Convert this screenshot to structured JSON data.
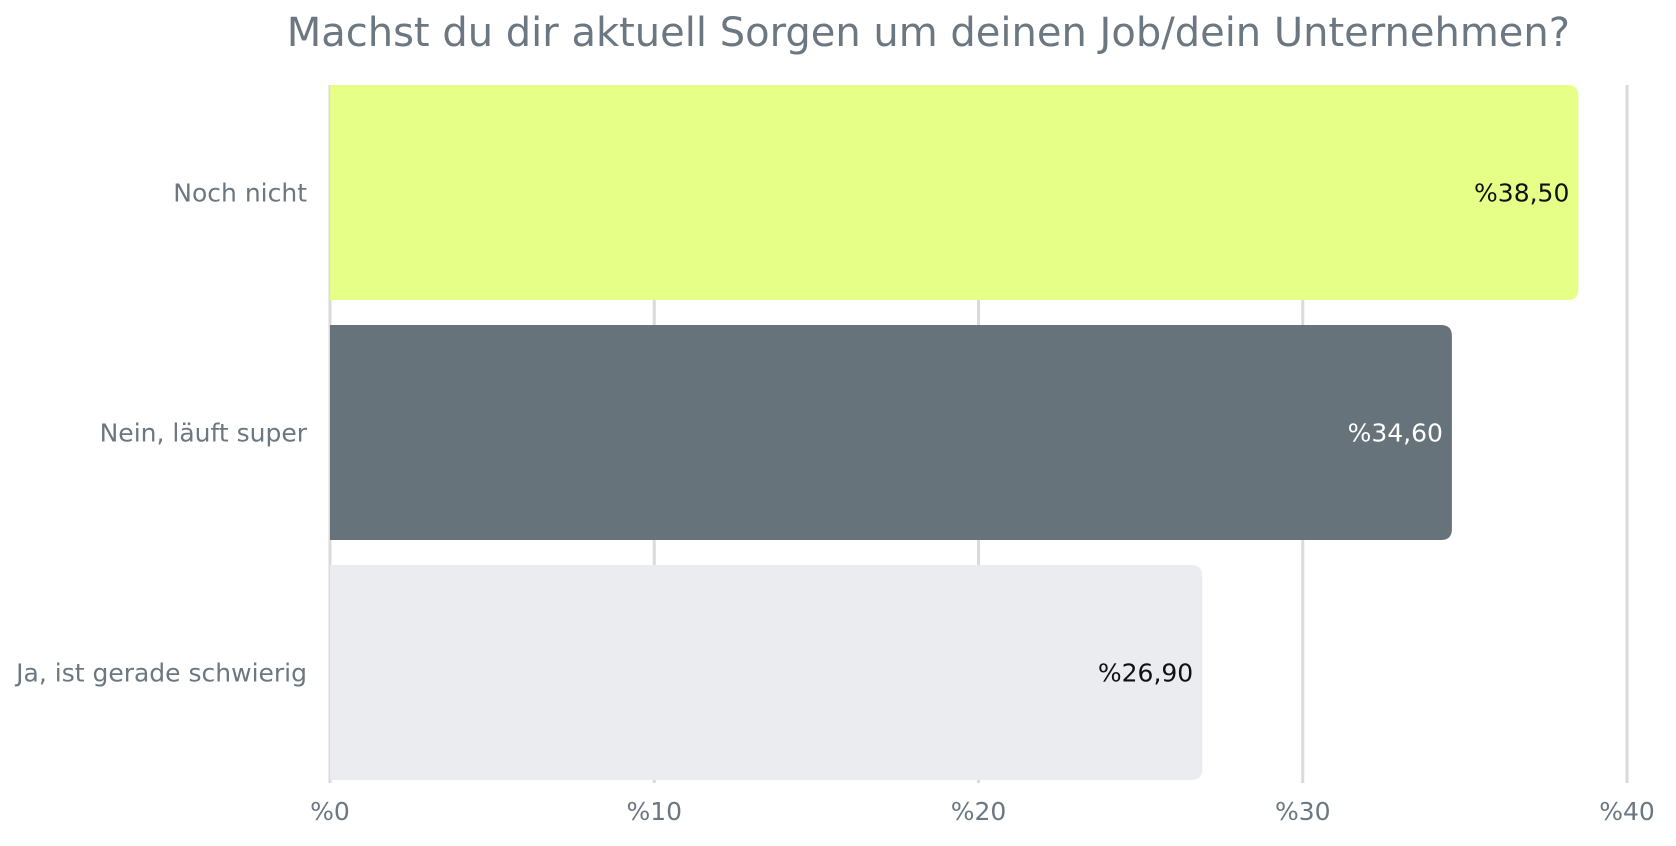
{
  "chart_data": {
    "type": "bar",
    "orientation": "horizontal",
    "title": "Machst du dir aktuell Sorgen um deinen Job/dein Unternehmen?",
    "categories": [
      "Noch nicht",
      "Nein, läuft super",
      "Ja, ist gerade schwierig"
    ],
    "values": [
      38.5,
      34.6,
      26.9
    ],
    "value_labels": [
      "%38,50",
      "%34,60",
      "%26,90"
    ],
    "bar_colors": [
      "#e6ff87",
      "#67737b",
      "#ebecef"
    ],
    "label_colors": [
      "#111111",
      "#ffffff",
      "#111111"
    ],
    "xlim": [
      0,
      40
    ],
    "xticks": [
      0,
      10,
      20,
      30,
      40
    ],
    "xtick_labels": [
      "%0",
      "%10",
      "%20",
      "%30",
      "%40"
    ],
    "xlabel": "",
    "ylabel": "",
    "grid": true,
    "legend": "none",
    "colors": {
      "text": "#6b7781",
      "grid": "#d9dadc"
    }
  }
}
